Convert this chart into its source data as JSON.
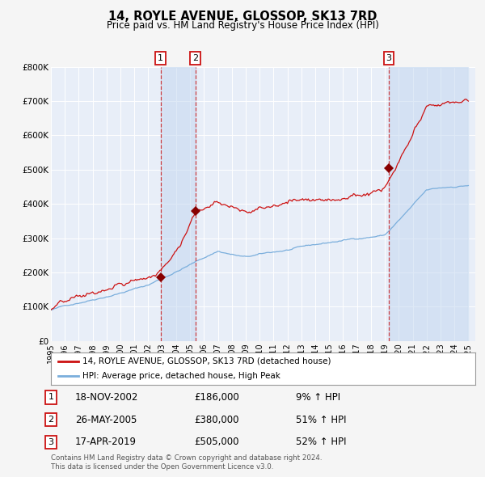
{
  "title": "14, ROYLE AVENUE, GLOSSOP, SK13 7RD",
  "subtitle": "Price paid vs. HM Land Registry's House Price Index (HPI)",
  "title_fontsize": 10.5,
  "subtitle_fontsize": 8.5,
  "background_color": "#f5f5f5",
  "plot_bg_color": "#e8eef8",
  "grid_color": "#ffffff",
  "hpi_line_color": "#7aaedc",
  "price_line_color": "#cc1111",
  "sale_marker_color": "#880000",
  "sale_vline_color": "#cc2222",
  "sale_vline_alpha": 0.85,
  "sale_band_color": "#c5d8f0",
  "sale_band_alpha": 0.55,
  "ylim": [
    0,
    800000
  ],
  "yticks": [
    0,
    100000,
    200000,
    300000,
    400000,
    500000,
    600000,
    700000,
    800000
  ],
  "ytick_labels": [
    "£0",
    "£100K",
    "£200K",
    "£300K",
    "£400K",
    "£500K",
    "£600K",
    "£700K",
    "£800K"
  ],
  "sales": [
    {
      "label": "1",
      "date_num": 2002.88,
      "price": 186000,
      "date_str": "18-NOV-2002",
      "pct": "9%"
    },
    {
      "label": "2",
      "date_num": 2005.38,
      "price": 380000,
      "date_str": "26-MAY-2005",
      "pct": "51%"
    },
    {
      "label": "3",
      "date_num": 2019.29,
      "price": 505000,
      "date_str": "17-APR-2019",
      "pct": "52%"
    }
  ],
  "legend_entries": [
    "14, ROYLE AVENUE, GLOSSOP, SK13 7RD (detached house)",
    "HPI: Average price, detached house, High Peak"
  ],
  "footer_line1": "Contains HM Land Registry data © Crown copyright and database right 2024.",
  "footer_line2": "This data is licensed under the Open Government Licence v3.0."
}
